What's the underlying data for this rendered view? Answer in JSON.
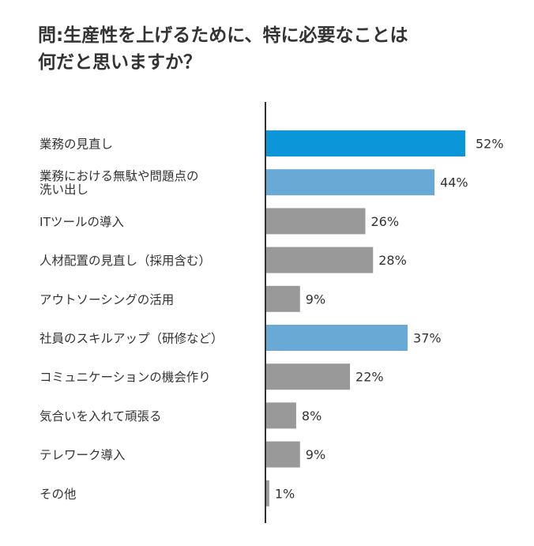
{
  "chart_data": {
    "type": "bar",
    "orientation": "horizontal",
    "title": [
      "問:生産性を上げるために、特に必要なことは",
      "何だと思いますか？"
    ],
    "categories": [
      [
        "業務の見直し"
      ],
      [
        "業務における無駄や問題点の",
        "洗い出し"
      ],
      [
        "ITツールの導入"
      ],
      [
        "人材配置の見直し（採用含む）"
      ],
      [
        "アウトソーシングの活用"
      ],
      [
        "社員のスキルアップ（研修など）"
      ],
      [
        "コミュニケーションの機会作り"
      ],
      [
        "気合いを入れて頑張る"
      ],
      [
        "テレワーク導入"
      ],
      [
        "その他"
      ]
    ],
    "values": [
      52,
      44,
      26,
      28,
      9,
      37,
      22,
      8,
      9,
      1
    ],
    "value_labels": [
      "52%",
      "44%",
      "26%",
      "28%",
      "9%",
      "37%",
      "22%",
      "8%",
      "9%",
      "1%"
    ],
    "bar_colors": [
      "#0a96d8",
      "#68a9d6",
      "#999999",
      "#999999",
      "#999999",
      "#68a9d6",
      "#999999",
      "#999999",
      "#999999",
      "#999999"
    ],
    "xlim": [
      0,
      60
    ],
    "grid": false,
    "legend": "none"
  }
}
